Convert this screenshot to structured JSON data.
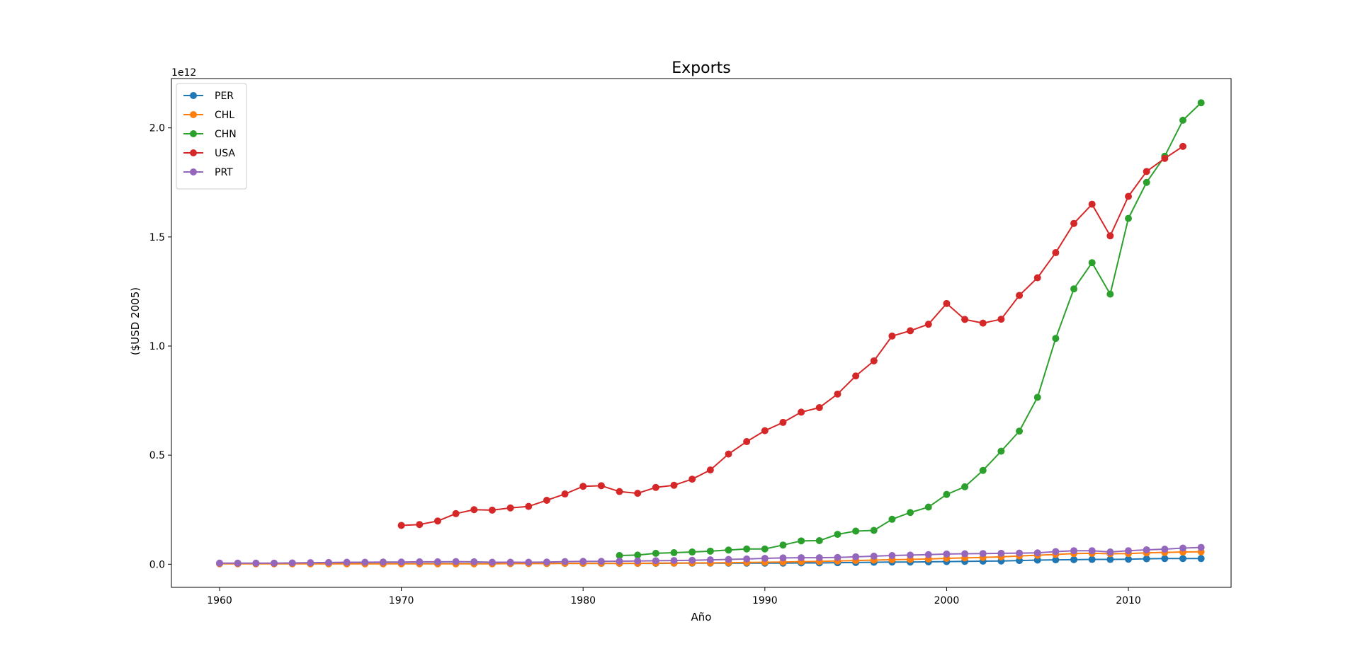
{
  "chart_data": {
    "type": "line",
    "title": "Exports",
    "xlabel": "Año",
    "ylabel": "($USD 2005)",
    "y_offset_label": "1e12",
    "y_scale_factor": 1000000000000,
    "xlim": [
      1957.35,
      2015.65
    ],
    "ylim": [
      -0.106,
      2.226
    ],
    "xticks": [
      1960,
      1970,
      1980,
      1990,
      2000,
      2010
    ],
    "xtick_labels": [
      "1960",
      "1970",
      "1980",
      "1990",
      "2000",
      "2010"
    ],
    "yticks": [
      0,
      0.5,
      1.0,
      1.5,
      2.0
    ],
    "ytick_labels": [
      "0.0",
      "0.5",
      "1.0",
      "1.5",
      "2.0"
    ],
    "legend_position": "upper-left",
    "grid": false,
    "series": [
      {
        "name": "PER",
        "color": "#1f77b4",
        "x": [
          1960,
          1961,
          1962,
          1963,
          1964,
          1965,
          1966,
          1967,
          1968,
          1969,
          1970,
          1971,
          1972,
          1973,
          1974,
          1975,
          1976,
          1977,
          1978,
          1979,
          1980,
          1981,
          1982,
          1983,
          1984,
          1985,
          1986,
          1987,
          1988,
          1989,
          1990,
          1991,
          1992,
          1993,
          1994,
          1995,
          1996,
          1997,
          1998,
          1999,
          2000,
          2001,
          2002,
          2003,
          2004,
          2005,
          2006,
          2007,
          2008,
          2009,
          2010,
          2011,
          2012,
          2013,
          2014
        ],
        "y": [
          0.003,
          0.003,
          0.003,
          0.003,
          0.003,
          0.003,
          0.003,
          0.003,
          0.003,
          0.003,
          0.003,
          0.003,
          0.003,
          0.003,
          0.003,
          0.003,
          0.003,
          0.004,
          0.004,
          0.004,
          0.004,
          0.004,
          0.004,
          0.004,
          0.004,
          0.005,
          0.005,
          0.005,
          0.005,
          0.005,
          0.005,
          0.005,
          0.006,
          0.006,
          0.007,
          0.008,
          0.009,
          0.01,
          0.01,
          0.011,
          0.012,
          0.013,
          0.014,
          0.015,
          0.017,
          0.019,
          0.02,
          0.021,
          0.022,
          0.022,
          0.023,
          0.025,
          0.026,
          0.026,
          0.026
        ]
      },
      {
        "name": "CHL",
        "color": "#ff7f0e",
        "x": [
          1960,
          1961,
          1962,
          1963,
          1964,
          1965,
          1966,
          1967,
          1968,
          1969,
          1970,
          1971,
          1972,
          1973,
          1974,
          1975,
          1976,
          1977,
          1978,
          1979,
          1980,
          1981,
          1982,
          1983,
          1984,
          1985,
          1986,
          1987,
          1988,
          1989,
          1990,
          1991,
          1992,
          1993,
          1994,
          1995,
          1996,
          1997,
          1998,
          1999,
          2000,
          2001,
          2002,
          2003,
          2004,
          2005,
          2006,
          2007,
          2008,
          2009,
          2010,
          2011,
          2012,
          2013,
          2014
        ],
        "y": [
          0.002,
          0.002,
          0.002,
          0.002,
          0.002,
          0.002,
          0.002,
          0.002,
          0.002,
          0.002,
          0.002,
          0.002,
          0.002,
          0.002,
          0.002,
          0.002,
          0.003,
          0.003,
          0.003,
          0.004,
          0.004,
          0.004,
          0.004,
          0.004,
          0.005,
          0.005,
          0.006,
          0.006,
          0.007,
          0.008,
          0.009,
          0.01,
          0.012,
          0.013,
          0.015,
          0.017,
          0.019,
          0.021,
          0.022,
          0.024,
          0.027,
          0.029,
          0.031,
          0.034,
          0.038,
          0.041,
          0.045,
          0.049,
          0.05,
          0.048,
          0.049,
          0.052,
          0.054,
          0.056,
          0.057
        ]
      },
      {
        "name": "CHN",
        "color": "#2ca02c",
        "x": [
          1982,
          1983,
          1984,
          1985,
          1986,
          1987,
          1988,
          1989,
          1990,
          1991,
          1992,
          1993,
          1994,
          1995,
          1996,
          1997,
          1998,
          1999,
          2000,
          2001,
          2002,
          2003,
          2004,
          2005,
          2006,
          2007,
          2008,
          2009,
          2010,
          2011,
          2012,
          2013,
          2014
        ],
        "y": [
          0.04,
          0.042,
          0.05,
          0.053,
          0.056,
          0.06,
          0.065,
          0.07,
          0.07,
          0.088,
          0.107,
          0.108,
          0.137,
          0.152,
          0.155,
          0.206,
          0.237,
          0.262,
          0.32,
          0.355,
          0.43,
          0.518,
          0.61,
          0.765,
          1.035,
          1.262,
          1.382,
          1.238,
          1.585,
          1.75,
          1.87,
          2.035,
          2.115
        ]
      },
      {
        "name": "USA",
        "color": "#d62728",
        "x": [
          1970,
          1971,
          1972,
          1973,
          1974,
          1975,
          1976,
          1977,
          1978,
          1979,
          1980,
          1981,
          1982,
          1983,
          1984,
          1985,
          1986,
          1987,
          1988,
          1989,
          1990,
          1991,
          1992,
          1993,
          1994,
          1995,
          1996,
          1997,
          1998,
          1999,
          2000,
          2001,
          2002,
          2003,
          2004,
          2005,
          2006,
          2007,
          2008,
          2009,
          2010,
          2011,
          2012,
          2013
        ],
        "y": [
          0.178,
          0.182,
          0.198,
          0.232,
          0.25,
          0.248,
          0.258,
          0.265,
          0.293,
          0.322,
          0.357,
          0.36,
          0.333,
          0.325,
          0.352,
          0.362,
          0.39,
          0.432,
          0.505,
          0.562,
          0.612,
          0.65,
          0.697,
          0.718,
          0.78,
          0.863,
          0.932,
          1.046,
          1.07,
          1.1,
          1.195,
          1.122,
          1.105,
          1.123,
          1.232,
          1.313,
          1.428,
          1.562,
          1.65,
          1.505,
          1.686,
          1.8,
          1.86,
          1.915
        ]
      },
      {
        "name": "PRT",
        "color": "#9467bd",
        "x": [
          1960,
          1961,
          1962,
          1963,
          1964,
          1965,
          1966,
          1967,
          1968,
          1969,
          1970,
          1971,
          1972,
          1973,
          1974,
          1975,
          1976,
          1977,
          1978,
          1979,
          1980,
          1981,
          1982,
          1983,
          1984,
          1985,
          1986,
          1987,
          1988,
          1989,
          1990,
          1991,
          1992,
          1993,
          1994,
          1995,
          1996,
          1997,
          1998,
          1999,
          2000,
          2001,
          2002,
          2003,
          2004,
          2005,
          2006,
          2007,
          2008,
          2009,
          2010,
          2011,
          2012,
          2013,
          2014
        ],
        "y": [
          0.005,
          0.005,
          0.005,
          0.005,
          0.006,
          0.007,
          0.008,
          0.009,
          0.009,
          0.01,
          0.01,
          0.011,
          0.011,
          0.012,
          0.011,
          0.009,
          0.009,
          0.009,
          0.01,
          0.012,
          0.013,
          0.013,
          0.014,
          0.015,
          0.016,
          0.017,
          0.018,
          0.02,
          0.022,
          0.024,
          0.027,
          0.029,
          0.03,
          0.03,
          0.031,
          0.034,
          0.037,
          0.04,
          0.042,
          0.044,
          0.047,
          0.048,
          0.049,
          0.05,
          0.051,
          0.052,
          0.058,
          0.062,
          0.062,
          0.056,
          0.062,
          0.066,
          0.069,
          0.074,
          0.077
        ]
      }
    ]
  }
}
